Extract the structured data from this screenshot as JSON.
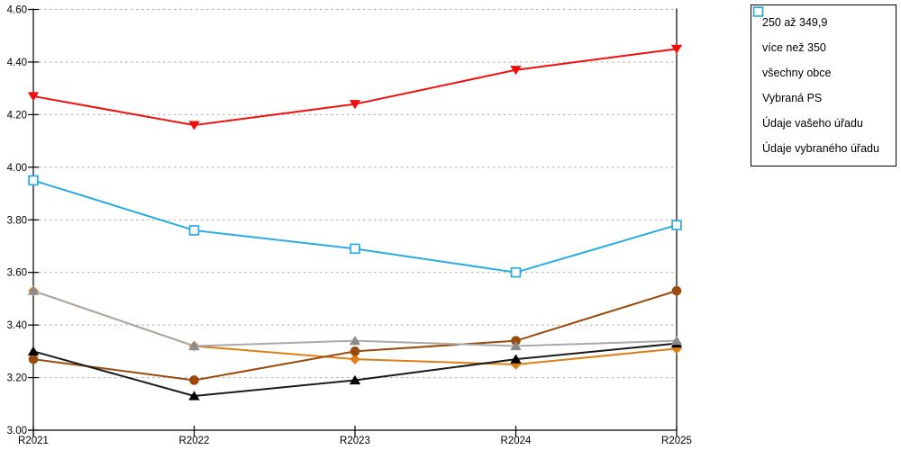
{
  "chart_data": {
    "type": "line",
    "title": "",
    "xlabel": "",
    "ylabel": "",
    "categories": [
      "R2021",
      "R2022",
      "R2023",
      "R2024",
      "R2025"
    ],
    "ylim": [
      3.0,
      4.6
    ],
    "yticks": [
      {
        "value": 3.0,
        "label": "3.00"
      },
      {
        "value": 3.2,
        "label": "3.20"
      },
      {
        "value": 3.4,
        "label": "3.40"
      },
      {
        "value": 3.6,
        "label": "3.60"
      },
      {
        "value": 3.8,
        "label": "3.80"
      },
      {
        "value": 4.0,
        "label": "4.00"
      },
      {
        "value": 4.2,
        "label": "4.20"
      },
      {
        "value": 4.4,
        "label": "4.40"
      },
      {
        "value": 4.6,
        "label": "4.60"
      }
    ],
    "grid": "horizontal-dashed",
    "grid_color": "#ABABAB",
    "axis_color": "#000000",
    "legend_position": "outside-top-right",
    "series": [
      {
        "name": "250 až 349,9",
        "slug": "250-az-349-9",
        "marker": "diamond",
        "color": "#DE7E18",
        "line_color": "#DE7E18",
        "values": [
          3.53,
          3.32,
          3.27,
          3.25,
          3.31
        ]
      },
      {
        "name": "více než 350",
        "slug": "vice-nez-350",
        "marker": "circle",
        "color": "#9A4A0D",
        "line_color": "#9A4A0D",
        "values": [
          3.27,
          3.19,
          3.3,
          3.34,
          3.53
        ]
      },
      {
        "name": "všechny obce",
        "slug": "vsechny-obce",
        "marker": "triangle-up",
        "color": "#000000",
        "line_color": "#1A1A1A",
        "values": [
          3.3,
          3.13,
          3.19,
          3.27,
          3.33
        ]
      },
      {
        "name": "Vybraná PS",
        "slug": "vybrana-ps",
        "marker": "triangle-up",
        "color": "#8C8C8C",
        "line_color": "#A9A9A9",
        "values": [
          3.53,
          3.32,
          3.34,
          3.32,
          3.34
        ]
      },
      {
        "name": "Údaje vašeho úřadu",
        "slug": "udaje-vaseho-uradu",
        "marker": "triangle-down",
        "color": "#F20D0D",
        "line_color": "#F20D0D",
        "values": [
          4.27,
          4.16,
          4.24,
          4.37,
          4.45
        ]
      },
      {
        "name": "Údaje vybraného úřadu",
        "slug": "udaje-vybraneho-uradu",
        "marker": "square-open",
        "color": "#29ABE2",
        "line_color": "#29ABE2",
        "values": [
          3.95,
          3.76,
          3.69,
          3.6,
          3.78
        ]
      }
    ]
  }
}
